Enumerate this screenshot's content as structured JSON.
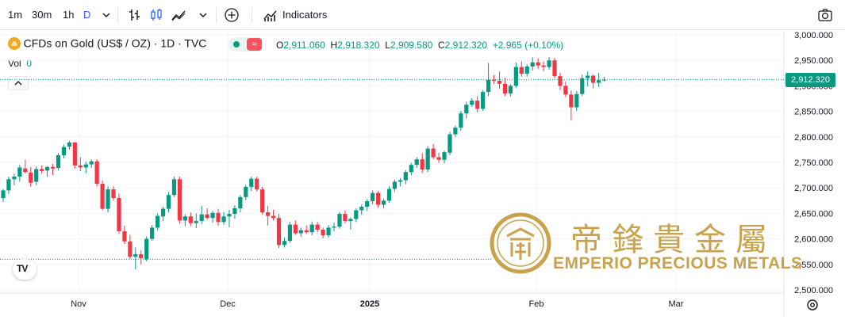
{
  "toolbar": {
    "intervals": [
      {
        "label": "1m"
      },
      {
        "label": "30m"
      },
      {
        "label": "1h"
      },
      {
        "label": "D",
        "active": true
      }
    ],
    "indicators_label": "Indicators",
    "icons": [
      "chevron-down-icon",
      "bar-chart-icon",
      "candles-icon",
      "area-chart-icon",
      "add-circle-icon",
      "indicators-icon",
      "camera-icon"
    ]
  },
  "legend": {
    "symbol": "CFDs on Gold (US$ / OZ) · 1D · TVC",
    "open_label": "O",
    "open": "2,911.060",
    "high_label": "H",
    "high": "2,918.320",
    "low_label": "L",
    "low": "2,909.580",
    "close_label": "C",
    "close": "2,912.320",
    "change": "+2.965 (+0.10%)",
    "vol_label": "Vol",
    "vol_value": "0"
  },
  "watermark": {
    "chinese": "帝鋒貴金屬",
    "english": "EMPERIO PRECIOUS METALS"
  },
  "colors": {
    "up": "#089981",
    "down": "#f23645",
    "grid": "#f0f3fa",
    "gold": "#c8a24c"
  },
  "chart_data": {
    "type": "candlestick",
    "ylim": [
      2500,
      3000
    ],
    "y_ticks": [
      "3,000.000",
      "2,950.000",
      "2,900.000",
      "2,850.000",
      "2,800.000",
      "2,750.000",
      "2,700.000",
      "2,650.000",
      "2,600.000",
      "2,550.000",
      "2,500.000"
    ],
    "x_ticks": [
      "Nov",
      "Dec",
      "2025",
      "Feb",
      "Mar"
    ],
    "last_price": "2,912.320",
    "reference_price_line": 2560,
    "candles": [
      [
        2680,
        2698,
        2672,
        2695
      ],
      [
        2695,
        2722,
        2688,
        2717
      ],
      [
        2717,
        2728,
        2705,
        2722
      ],
      [
        2722,
        2745,
        2712,
        2740
      ],
      [
        2738,
        2755,
        2728,
        2731
      ],
      [
        2730,
        2741,
        2702,
        2710
      ],
      [
        2712,
        2742,
        2705,
        2737
      ],
      [
        2737,
        2744,
        2728,
        2733
      ],
      [
        2734,
        2742,
        2722,
        2741
      ],
      [
        2741,
        2747,
        2725,
        2738
      ],
      [
        2739,
        2768,
        2734,
        2764
      ],
      [
        2764,
        2785,
        2758,
        2780
      ],
      [
        2781,
        2792,
        2775,
        2789
      ],
      [
        2789,
        2790,
        2738,
        2744
      ],
      [
        2744,
        2760,
        2733,
        2740
      ],
      [
        2740,
        2752,
        2728,
        2746
      ],
      [
        2746,
        2756,
        2739,
        2752
      ],
      [
        2752,
        2756,
        2703,
        2708
      ],
      [
        2708,
        2714,
        2656,
        2659
      ],
      [
        2659,
        2703,
        2652,
        2697
      ],
      [
        2697,
        2703,
        2675,
        2680
      ],
      [
        2680,
        2689,
        2610,
        2615
      ],
      [
        2615,
        2626,
        2590,
        2595
      ],
      [
        2595,
        2608,
        2560,
        2565
      ],
      [
        2565,
        2583,
        2540,
        2570
      ],
      [
        2570,
        2578,
        2550,
        2562
      ],
      [
        2560,
        2605,
        2556,
        2600
      ],
      [
        2600,
        2627,
        2596,
        2622
      ],
      [
        2622,
        2650,
        2617,
        2645
      ],
      [
        2644,
        2663,
        2635,
        2659
      ],
      [
        2659,
        2692,
        2652,
        2686
      ],
      [
        2686,
        2722,
        2682,
        2717
      ],
      [
        2717,
        2722,
        2630,
        2636
      ],
      [
        2636,
        2648,
        2625,
        2644
      ],
      [
        2644,
        2652,
        2625,
        2631
      ],
      [
        2631,
        2650,
        2621,
        2635
      ],
      [
        2635,
        2665,
        2629,
        2648
      ],
      [
        2648,
        2660,
        2638,
        2641
      ],
      [
        2641,
        2655,
        2632,
        2651
      ],
      [
        2651,
        2659,
        2626,
        2633
      ],
      [
        2633,
        2653,
        2628,
        2644
      ],
      [
        2644,
        2657,
        2623,
        2649
      ],
      [
        2649,
        2666,
        2639,
        2660
      ],
      [
        2660,
        2686,
        2652,
        2682
      ],
      [
        2682,
        2706,
        2676,
        2702
      ],
      [
        2702,
        2722,
        2694,
        2718
      ],
      [
        2718,
        2722,
        2693,
        2697
      ],
      [
        2697,
        2702,
        2648,
        2652
      ],
      [
        2652,
        2665,
        2626,
        2645
      ],
      [
        2645,
        2657,
        2636,
        2641
      ],
      [
        2641,
        2649,
        2582,
        2588
      ],
      [
        2588,
        2603,
        2583,
        2596
      ],
      [
        2596,
        2634,
        2592,
        2628
      ],
      [
        2628,
        2636,
        2608,
        2611
      ],
      [
        2611,
        2622,
        2604,
        2617
      ],
      [
        2617,
        2626,
        2610,
        2613
      ],
      [
        2613,
        2634,
        2607,
        2628
      ],
      [
        2628,
        2633,
        2613,
        2618
      ],
      [
        2618,
        2622,
        2601,
        2607
      ],
      [
        2607,
        2627,
        2603,
        2622
      ],
      [
        2622,
        2632,
        2615,
        2624
      ],
      [
        2624,
        2653,
        2620,
        2649
      ],
      [
        2649,
        2656,
        2631,
        2635
      ],
      [
        2635,
        2642,
        2618,
        2639
      ],
      [
        2639,
        2660,
        2633,
        2656
      ],
      [
        2656,
        2667,
        2647,
        2663
      ],
      [
        2663,
        2678,
        2655,
        2674
      ],
      [
        2674,
        2695,
        2668,
        2690
      ],
      [
        2690,
        2694,
        2661,
        2667
      ],
      [
        2667,
        2679,
        2660,
        2675
      ],
      [
        2675,
        2703,
        2671,
        2698
      ],
      [
        2698,
        2716,
        2692,
        2712
      ],
      [
        2712,
        2719,
        2703,
        2715
      ],
      [
        2715,
        2735,
        2707,
        2731
      ],
      [
        2731,
        2749,
        2725,
        2745
      ],
      [
        2745,
        2760,
        2739,
        2756
      ],
      [
        2756,
        2768,
        2729,
        2736
      ],
      [
        2736,
        2782,
        2731,
        2777
      ],
      [
        2777,
        2786,
        2756,
        2760
      ],
      [
        2760,
        2769,
        2749,
        2755
      ],
      [
        2755,
        2773,
        2748,
        2770
      ],
      [
        2769,
        2810,
        2764,
        2805
      ],
      [
        2805,
        2822,
        2800,
        2818
      ],
      [
        2818,
        2851,
        2812,
        2846
      ],
      [
        2846,
        2869,
        2836,
        2863
      ],
      [
        2863,
        2876,
        2859,
        2871
      ],
      [
        2871,
        2880,
        2848,
        2855
      ],
      [
        2855,
        2892,
        2851,
        2888
      ],
      [
        2888,
        2945,
        2880,
        2912
      ],
      [
        2912,
        2921,
        2904,
        2910
      ],
      [
        2910,
        2928,
        2894,
        2904
      ],
      [
        2904,
        2916,
        2880,
        2885
      ],
      [
        2885,
        2903,
        2879,
        2900
      ],
      [
        2900,
        2946,
        2896,
        2937
      ],
      [
        2937,
        2948,
        2918,
        2924
      ],
      [
        2924,
        2942,
        2918,
        2938
      ],
      [
        2938,
        2956,
        2930,
        2946
      ],
      [
        2946,
        2954,
        2933,
        2940
      ],
      [
        2940,
        2948,
        2929,
        2937
      ],
      [
        2937,
        2957,
        2932,
        2950
      ],
      [
        2950,
        2955,
        2915,
        2919
      ],
      [
        2919,
        2926,
        2892,
        2900
      ],
      [
        2900,
        2909,
        2878,
        2883
      ],
      [
        2883,
        2891,
        2832,
        2858
      ],
      [
        2858,
        2890,
        2851,
        2884
      ],
      [
        2884,
        2922,
        2880,
        2915
      ],
      [
        2915,
        2928,
        2899,
        2920
      ],
      [
        2920,
        2922,
        2895,
        2906
      ],
      [
        2906,
        2925,
        2898,
        2911
      ],
      [
        2911,
        2918,
        2909,
        2912
      ]
    ]
  }
}
